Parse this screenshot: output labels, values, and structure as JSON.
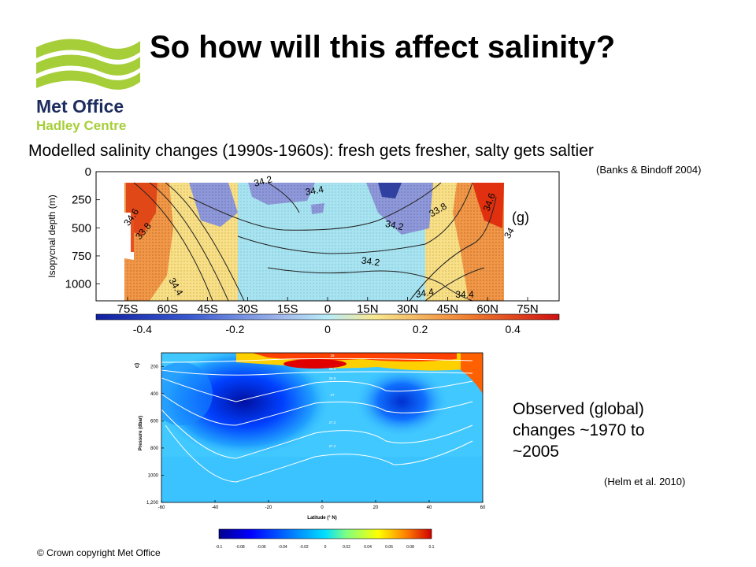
{
  "logo": {
    "line1": "Met Office",
    "line2": "Hadley Centre",
    "color_green": "#a6ce39",
    "color_navy": "#1d2c5e"
  },
  "title": "So how will this affect salinity?",
  "subtitle": "Modelled salinity changes (1990s-1960s): fresh gets fresher, salty gets saltier",
  "citation_model": "(Banks & Bindoff 2004)",
  "observed_caption": "Observed (global) changes ~1970 to ~2005",
  "citation_obs": "(Helm et al. 2010)",
  "copyright": "© Crown copyright   Met Office",
  "chart_data": [
    {
      "type": "heatmap",
      "panel_label": "(g)",
      "ylabel": "Isopycnal depth (m)",
      "x_ticks": [
        "75S",
        "60S",
        "45S",
        "30S",
        "15S",
        "0",
        "15N",
        "30N",
        "45N",
        "60N",
        "75N"
      ],
      "y_ticks": [
        "0",
        "250",
        "500",
        "750",
        "1000"
      ],
      "ylim": [
        0,
        1150
      ],
      "contour_labels": [
        "34.2",
        "34.4",
        "34.6",
        "33.8",
        "34.4",
        "34.2",
        "33.8",
        "34",
        "34.2",
        "34.4",
        "34.4",
        "34.6"
      ],
      "colorbar_ticks": [
        "-0.4",
        "-0.2",
        "0",
        "0.2",
        "0.4"
      ],
      "colorbar_range": [
        -0.5,
        0.5
      ],
      "colors": {
        "fresh": "#4060c0",
        "salty": "#e03010",
        "neutral": "#a8e4f0"
      }
    },
    {
      "type": "heatmap",
      "panel_label": "c)",
      "xlabel": "Latitude (° N)",
      "ylabel": "Pressure (dbar)",
      "x_ticks": [
        "-60",
        "-40",
        "-20",
        "0",
        "20",
        "40",
        "60"
      ],
      "y_ticks": [
        "200",
        "400",
        "600",
        "800",
        "1000",
        "1,200"
      ],
      "xlim": [
        -60,
        60
      ],
      "ylim": [
        100,
        1200
      ],
      "contour_labels": [
        "26",
        "26.4",
        "26.8",
        "27",
        "27.2",
        "27.4"
      ],
      "colorbar_ticks": [
        "-0.1",
        "-0.08",
        "-0.06",
        "-0.04",
        "-0.02",
        "0",
        "0.02",
        "0.04",
        "0.06",
        "0.08",
        "0.1"
      ],
      "colorbar_range": [
        -0.1,
        0.1
      ]
    }
  ]
}
